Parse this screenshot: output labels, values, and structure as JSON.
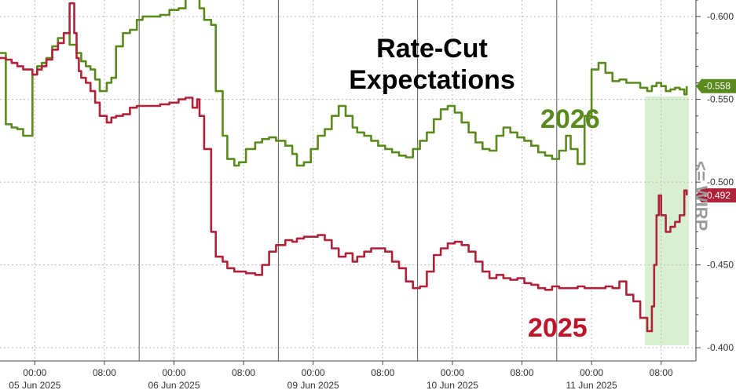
{
  "chart_data": {
    "type": "line",
    "title": "Rate-Cut Expectations",
    "ylabel": "<= WIRP",
    "ylim": [
      -0.61,
      -0.392
    ],
    "ytick_values": [
      -0.6,
      -0.55,
      -0.5,
      -0.45,
      -0.4
    ],
    "yticks": [
      "-0.600",
      "-0.550",
      "-0.500",
      "-0.450",
      "-0.400"
    ],
    "xlim": [
      0,
      6
    ],
    "xticks": [
      {
        "time": "00:00",
        "date": "05 Jun 2025"
      },
      {
        "time": "08:00",
        "date": ""
      },
      {
        "time": "00:00",
        "date": "06 Jun 2025"
      },
      {
        "time": "08:00",
        "date": ""
      },
      {
        "time": "00:00",
        "date": "09 Jun 2025"
      },
      {
        "time": "08:00",
        "date": ""
      },
      {
        "time": "00:00",
        "date": "10 Jun 2025"
      },
      {
        "time": "08:00",
        "date": ""
      },
      {
        "time": "00:00",
        "date": "11 Jun 2025"
      },
      {
        "time": "08:00",
        "date": ""
      }
    ],
    "grid": true,
    "highlight": {
      "x0": 5.56,
      "x1": 5.94,
      "color": "#d9f0d0"
    },
    "series": [
      {
        "name": "2026",
        "color": "#5a8a1e",
        "last_value_label": "-0.558",
        "x": [
          0.0,
          0.05,
          0.1,
          0.15,
          0.2,
          0.28,
          0.32,
          0.36,
          0.4,
          0.45,
          0.5,
          0.55,
          0.6,
          0.66,
          0.7,
          0.74,
          0.78,
          0.82,
          0.86,
          0.92,
          0.96,
          1.0,
          1.06,
          1.12,
          1.18,
          1.23,
          1.3,
          1.38,
          1.46,
          1.54,
          1.6,
          1.66,
          1.7,
          1.72,
          1.76,
          1.82,
          1.86,
          1.92,
          1.96,
          2.02,
          2.06,
          2.12,
          2.2,
          2.26,
          2.32,
          2.38,
          2.46,
          2.52,
          2.56,
          2.62,
          2.68,
          2.74,
          2.8,
          2.86,
          2.92,
          2.98,
          3.04,
          3.08,
          3.14,
          3.2,
          3.26,
          3.32,
          3.38,
          3.44,
          3.5,
          3.56,
          3.62,
          3.68,
          3.74,
          3.8,
          3.86,
          3.92,
          3.98,
          4.04,
          4.1,
          4.16,
          4.22,
          4.28,
          4.34,
          4.4,
          4.46,
          4.52,
          4.58,
          4.64,
          4.7,
          4.76,
          4.82,
          4.88,
          4.92,
          4.98,
          5.04,
          5.1,
          5.16,
          5.22,
          5.28,
          5.34,
          5.4,
          5.46,
          5.52,
          5.58,
          5.62,
          5.66,
          5.7,
          5.74,
          5.78,
          5.82,
          5.86,
          5.9,
          5.92
        ],
        "values": [
          -0.578,
          -0.535,
          -0.533,
          -0.532,
          -0.528,
          -0.565,
          -0.57,
          -0.572,
          -0.575,
          -0.582,
          -0.587,
          -0.59,
          -0.583,
          -0.578,
          -0.573,
          -0.57,
          -0.568,
          -0.562,
          -0.555,
          -0.56,
          -0.563,
          -0.582,
          -0.59,
          -0.592,
          -0.598,
          -0.6,
          -0.6,
          -0.601,
          -0.604,
          -0.605,
          -0.62,
          -0.615,
          -0.613,
          -0.605,
          -0.598,
          -0.595,
          -0.555,
          -0.528,
          -0.514,
          -0.51,
          -0.512,
          -0.52,
          -0.524,
          -0.526,
          -0.527,
          -0.525,
          -0.522,
          -0.517,
          -0.51,
          -0.512,
          -0.52,
          -0.528,
          -0.532,
          -0.54,
          -0.546,
          -0.54,
          -0.533,
          -0.53,
          -0.528,
          -0.525,
          -0.522,
          -0.52,
          -0.518,
          -0.516,
          -0.515,
          -0.52,
          -0.525,
          -0.53,
          -0.538,
          -0.544,
          -0.546,
          -0.542,
          -0.536,
          -0.53,
          -0.524,
          -0.52,
          -0.519,
          -0.528,
          -0.533,
          -0.53,
          -0.527,
          -0.525,
          -0.522,
          -0.518,
          -0.516,
          -0.514,
          -0.519,
          -0.528,
          -0.52,
          -0.511,
          -0.54,
          -0.568,
          -0.572,
          -0.566,
          -0.561,
          -0.562,
          -0.56,
          -0.56,
          -0.557,
          -0.555,
          -0.558,
          -0.56,
          -0.558,
          -0.555,
          -0.556,
          -0.557,
          -0.556,
          -0.553,
          -0.558
        ]
      },
      {
        "name": "2025",
        "color": "#b0223a",
        "last_value_label": "-0.492",
        "x": [
          0.0,
          0.05,
          0.1,
          0.15,
          0.2,
          0.28,
          0.32,
          0.36,
          0.4,
          0.45,
          0.5,
          0.55,
          0.6,
          0.64,
          0.66,
          0.68,
          0.7,
          0.74,
          0.78,
          0.82,
          0.86,
          0.92,
          0.96,
          1.0,
          1.06,
          1.12,
          1.18,
          1.23,
          1.3,
          1.38,
          1.46,
          1.54,
          1.6,
          1.66,
          1.7,
          1.72,
          1.76,
          1.82,
          1.86,
          1.92,
          1.96,
          2.02,
          2.06,
          2.12,
          2.2,
          2.26,
          2.32,
          2.38,
          2.46,
          2.52,
          2.56,
          2.62,
          2.68,
          2.74,
          2.8,
          2.86,
          2.92,
          2.98,
          3.04,
          3.08,
          3.14,
          3.2,
          3.26,
          3.32,
          3.38,
          3.44,
          3.5,
          3.56,
          3.62,
          3.68,
          3.74,
          3.8,
          3.86,
          3.92,
          3.98,
          4.04,
          4.1,
          4.16,
          4.22,
          4.28,
          4.34,
          4.4,
          4.46,
          4.52,
          4.58,
          4.64,
          4.7,
          4.76,
          4.82,
          4.88,
          4.92,
          4.98,
          5.04,
          5.1,
          5.16,
          5.22,
          5.28,
          5.34,
          5.4,
          5.46,
          5.52,
          5.58,
          5.62,
          5.64,
          5.66,
          5.68,
          5.7,
          5.74,
          5.78,
          5.82,
          5.86,
          5.9,
          5.92
        ],
        "values": [
          -0.575,
          -0.574,
          -0.572,
          -0.57,
          -0.568,
          -0.565,
          -0.568,
          -0.57,
          -0.574,
          -0.58,
          -0.584,
          -0.59,
          -0.608,
          -0.59,
          -0.575,
          -0.567,
          -0.563,
          -0.56,
          -0.555,
          -0.548,
          -0.54,
          -0.536,
          -0.539,
          -0.54,
          -0.541,
          -0.545,
          -0.546,
          -0.546,
          -0.546,
          -0.547,
          -0.548,
          -0.55,
          -0.551,
          -0.545,
          -0.55,
          -0.54,
          -0.52,
          -0.47,
          -0.455,
          -0.452,
          -0.448,
          -0.446,
          -0.446,
          -0.445,
          -0.444,
          -0.45,
          -0.458,
          -0.462,
          -0.465,
          -0.464,
          -0.466,
          -0.467,
          -0.467,
          -0.468,
          -0.465,
          -0.46,
          -0.455,
          -0.457,
          -0.452,
          -0.455,
          -0.458,
          -0.46,
          -0.46,
          -0.458,
          -0.452,
          -0.448,
          -0.44,
          -0.436,
          -0.437,
          -0.446,
          -0.456,
          -0.46,
          -0.463,
          -0.464,
          -0.462,
          -0.458,
          -0.452,
          -0.446,
          -0.442,
          -0.444,
          -0.442,
          -0.441,
          -0.442,
          -0.439,
          -0.438,
          -0.436,
          -0.435,
          -0.437,
          -0.436,
          -0.436,
          -0.436,
          -0.437,
          -0.436,
          -0.436,
          -0.436,
          -0.437,
          -0.436,
          -0.44,
          -0.432,
          -0.428,
          -0.418,
          -0.41,
          -0.425,
          -0.45,
          -0.48,
          -0.492,
          -0.48,
          -0.47,
          -0.473,
          -0.476,
          -0.48,
          -0.495,
          -0.492
        ]
      }
    ]
  }
}
